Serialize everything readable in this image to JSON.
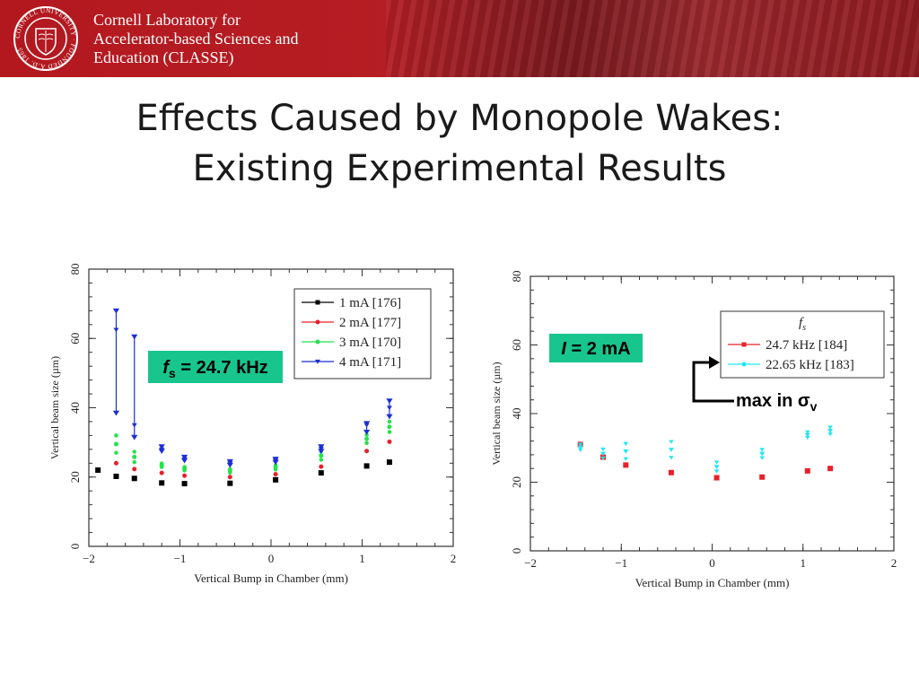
{
  "header": {
    "org_lines": [
      "Cornell Laboratory for",
      "Accelerator-based Sciences and",
      "Education (CLASSE)"
    ],
    "seal_text": "CORNELL UNIVERSITY · FOUNDED A.D. 1865"
  },
  "title": {
    "line1": "Effects Caused by Monopole Wakes:",
    "line2": "Existing Experimental Results"
  },
  "chart_data": [
    {
      "type": "scatter",
      "xlabel": "Vertical Bump in Chamber (mm)",
      "ylabel": "Vertical beam size (µm)",
      "xlim": [
        -2,
        2
      ],
      "ylim": [
        0,
        80
      ],
      "xticks": [
        "−2",
        "−1",
        "0",
        "1",
        "2"
      ],
      "yticks": [
        "0",
        "20",
        "40",
        "60",
        "80"
      ],
      "grid": false,
      "legend_placement": "top-right",
      "annotation": {
        "prefix": "f",
        "sub": "s",
        "text": " = 24.7 kHz",
        "color": "#18c58d"
      },
      "series": [
        {
          "name": "1 mA [176]",
          "color": "#000000",
          "marker": "square",
          "x": [
            -1.9,
            -1.7,
            -1.5,
            -1.2,
            -0.95,
            -0.45,
            0.05,
            0.55,
            1.05,
            1.3
          ],
          "y": [
            22,
            20.2,
            19.6,
            18.3,
            18.1,
            18.2,
            19.2,
            21.2,
            23.2,
            24.3
          ]
        },
        {
          "name": "2 mA [177]",
          "color": "#e8202a",
          "marker": "dot",
          "x": [
            -1.7,
            -1.5,
            -1.2,
            -0.95,
            -0.45,
            0.05,
            0.55,
            1.05,
            1.3
          ],
          "y": [
            24,
            22.3,
            21.2,
            20.4,
            20,
            20.8,
            23,
            27.5,
            30.2
          ]
        },
        {
          "name": "3 mA [170]",
          "color": "#22e34a",
          "marker": "dot",
          "x": [
            -1.7,
            -1.5,
            -1.2,
            -0.95,
            -0.45,
            0.05,
            0.55,
            1.05,
            1.3
          ],
          "y": [
            29.5,
            25.8,
            23.4,
            22.4,
            21.8,
            22.8,
            26.2,
            31,
            34.5
          ],
          "spread": [
            2.5,
            1.5,
            0.5,
            0.5,
            0.5,
            0.6,
            1.2,
            1.2,
            1.5
          ]
        },
        {
          "name": "4 mA [171]",
          "color": "#1c2fd6",
          "marker": "triangle",
          "x": [
            -1.7,
            -1.5,
            -1.2,
            -0.95,
            -0.45,
            0.05,
            0.55,
            1.05,
            1.3
          ],
          "y": [
            62.5,
            35,
            28,
            25.2,
            24,
            24.8,
            28.2,
            35,
            40
          ],
          "ylow": [
            38.5,
            31.5,
            27.5,
            24.8,
            23.5,
            24.3,
            27.5,
            33,
            37.5
          ],
          "yhigh": [
            68,
            60.5,
            28.8,
            25.8,
            24.5,
            25.2,
            28.8,
            35.5,
            42
          ]
        }
      ]
    },
    {
      "type": "scatter",
      "xlabel": "Vertical Bump in Chamber (mm)",
      "ylabel": "Vertical beam size (µm)",
      "xlim": [
        -2,
        2
      ],
      "ylim": [
        0,
        80
      ],
      "xticks": [
        "−2",
        "−1",
        "0",
        "1",
        "2"
      ],
      "yticks": [
        "0",
        "20",
        "40",
        "60",
        "80"
      ],
      "grid": false,
      "legend_placement": "top-right",
      "legend_title": {
        "prefix": "f",
        "sub": "s"
      },
      "annotation": {
        "prefix": "I",
        "text": " = 2 mA",
        "color": "#18c58d"
      },
      "note": {
        "prefix": "max in σ",
        "sub": "v"
      },
      "series": [
        {
          "name": "24.7 kHz [184]",
          "color": "#e8202a",
          "marker": "square",
          "x": [
            -1.45,
            -1.2,
            -0.95,
            -0.45,
            0.05,
            0.55,
            1.05,
            1.3
          ],
          "y": [
            31,
            27.3,
            25,
            22.8,
            21.3,
            21.5,
            23.3,
            24
          ]
        },
        {
          "name": "22.65 kHz [183]",
          "color": "#1fe8ee",
          "marker": "triangle",
          "x": [
            -1.45,
            -1.2,
            -0.95,
            -0.45,
            0.05,
            0.55,
            1.05,
            1.3
          ],
          "y": [
            30.2,
            28.3,
            29,
            29.5,
            24.5,
            28.3,
            33.8,
            35
          ],
          "spread": [
            0.8,
            1.3,
            2.2,
            2.3,
            1.3,
            1.2,
            0.8,
            1.0
          ]
        }
      ]
    }
  ]
}
